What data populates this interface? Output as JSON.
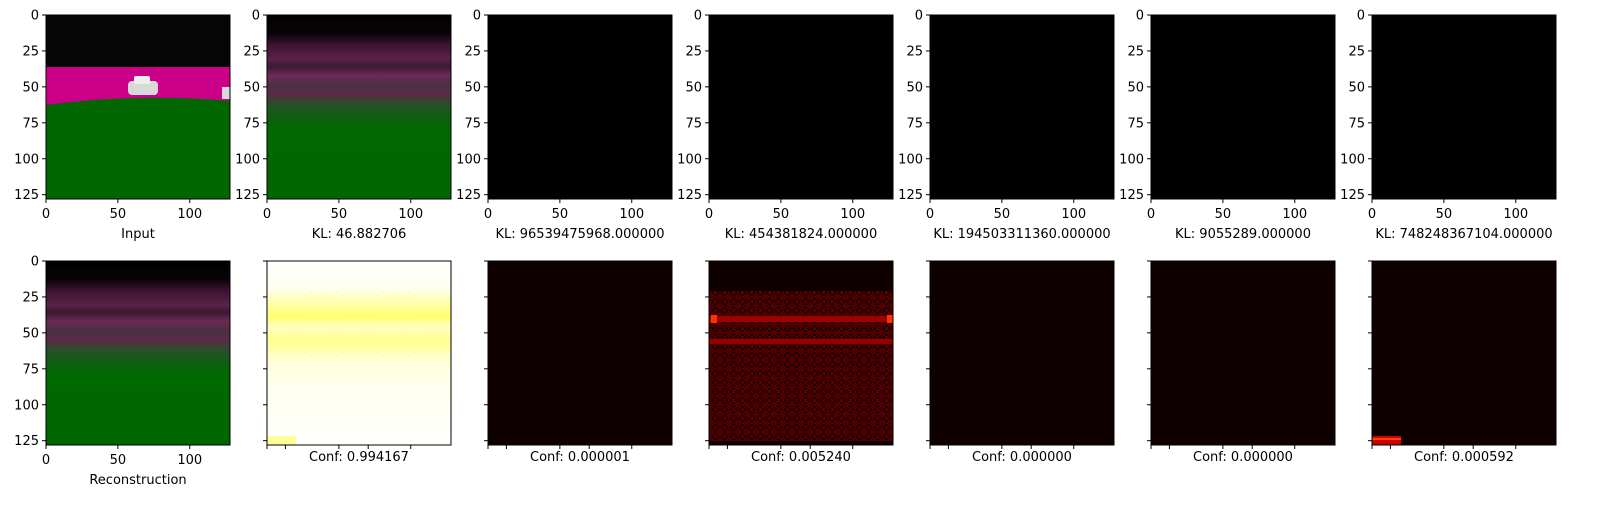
{
  "chart_data": {
    "type": "image_grid",
    "x_ticks": [
      0,
      50,
      100
    ],
    "y_ticks": [
      0,
      25,
      50,
      75,
      100,
      125
    ],
    "image_range": [
      0,
      128
    ],
    "rows": [
      {
        "panels": [
          {
            "caption": "Input",
            "content": "input-road-scene",
            "show_x_ticks": true,
            "show_y_ticks": true,
            "y_tick_labels": true
          },
          {
            "caption": "KL: 46.882706",
            "content": "blurry-reconstruction",
            "show_x_ticks": true,
            "show_y_ticks": true,
            "y_tick_labels": true
          },
          {
            "caption": "KL: 96539475968.000000",
            "content": "black",
            "show_x_ticks": true,
            "show_y_ticks": true,
            "y_tick_labels": true
          },
          {
            "caption": "KL: 454381824.000000",
            "content": "black",
            "show_x_ticks": true,
            "show_y_ticks": true,
            "y_tick_labels": true
          },
          {
            "caption": "KL: 194503311360.000000",
            "content": "black",
            "show_x_ticks": true,
            "show_y_ticks": true,
            "y_tick_labels": true
          },
          {
            "caption": "KL: 9055289.000000",
            "content": "black",
            "show_x_ticks": true,
            "show_y_ticks": true,
            "y_tick_labels": true
          },
          {
            "caption": "KL: 748248367104.000000",
            "content": "black",
            "show_x_ticks": true,
            "show_y_ticks": true,
            "y_tick_labels": true
          }
        ]
      },
      {
        "panels": [
          {
            "caption": "Reconstruction",
            "content": "blurry-reconstruction",
            "show_x_ticks": true,
            "show_y_ticks": true,
            "y_tick_labels": true
          },
          {
            "caption": "Conf: 0.994167",
            "content": "heatmap-high",
            "show_x_ticks": false,
            "show_y_ticks": true,
            "y_tick_labels": false
          },
          {
            "caption": "Conf: 0.000001",
            "content": "heatmap-dark",
            "show_x_ticks": false,
            "show_y_ticks": true,
            "y_tick_labels": false
          },
          {
            "caption": "Conf: 0.005240",
            "content": "heatmap-red-grid",
            "show_x_ticks": false,
            "show_y_ticks": true,
            "y_tick_labels": false
          },
          {
            "caption": "Conf: 0.000000",
            "content": "heatmap-dark",
            "show_x_ticks": false,
            "show_y_ticks": true,
            "y_tick_labels": false
          },
          {
            "caption": "Conf: 0.000000",
            "content": "heatmap-dark",
            "show_x_ticks": false,
            "show_y_ticks": true,
            "y_tick_labels": false
          },
          {
            "caption": "Conf: 0.000592",
            "content": "heatmap-dark-corner",
            "show_x_ticks": false,
            "show_y_ticks": true,
            "y_tick_labels": false
          }
        ]
      }
    ],
    "colors": {
      "sky": "#050505",
      "road": "#cc0088",
      "grass": "#006600",
      "car": "#d9d9d9",
      "blur_band": "#6a2a55",
      "heat_dark": "#0f0000",
      "heat_red": "#aa0000",
      "heat_yellow": "#ffff66"
    }
  }
}
